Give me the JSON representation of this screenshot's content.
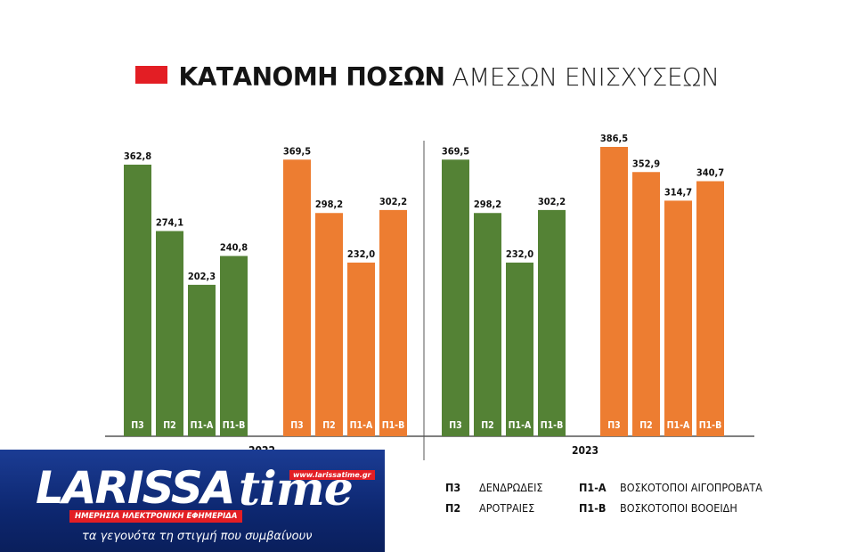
{
  "title": {
    "bold": "ΚΑΤΑΝΟΜΗ ΠΟΣΩΝ",
    "light": "ΑΜΕΣΩΝ ΕΝΙΣΧΥΣΕΩΝ"
  },
  "colors": {
    "green": "#548235",
    "orange": "#ed7d31",
    "accent": "#e31e24"
  },
  "chart_data": {
    "type": "bar",
    "categories": [
      "Π3",
      "Π2",
      "Π1-Α",
      "Π1-Β"
    ],
    "panels": [
      {
        "label": "2022",
        "series": [
          {
            "color": "#548235",
            "values": [
              362.8,
              274.1,
              202.3,
              240.8
            ],
            "labels": [
              "362,8",
              "274,1",
              "202,3",
              "240,8"
            ]
          },
          {
            "color": "#ed7d31",
            "values": [
              369.5,
              298.2,
              232.0,
              302.2
            ],
            "labels": [
              "369,5",
              "298,2",
              "232,0",
              "302,2"
            ]
          }
        ]
      },
      {
        "label": "2023",
        "series": [
          {
            "color": "#548235",
            "values": [
              369.5,
              298.2,
              232.0,
              302.2
            ],
            "labels": [
              "369,5",
              "298,2",
              "232,0",
              "302,2"
            ]
          },
          {
            "color": "#ed7d31",
            "values": [
              386.5,
              352.9,
              314.7,
              340.7
            ],
            "labels": [
              "386,5",
              "352,9",
              "314,7",
              "340,7"
            ]
          }
        ]
      }
    ],
    "ylim": [
      0,
      386.5
    ]
  },
  "legend": [
    {
      "code": "Π3",
      "text": "ΔΕΝΔΡΩΔΕΙΣ"
    },
    {
      "code": "Π2",
      "text": "ΑΡΟΤΡΑΙΕΣ"
    },
    {
      "code": "Π1-Α",
      "text": "ΒΟΣΚΟΤΟΠΟΙ ΑΙΓΟΠΡΟΒΑΤΑ"
    },
    {
      "code": "Π1-Β",
      "text": "ΒΟΣΚΟΤΟΠΟΙ ΒΟΟΕΙΔΗ"
    }
  ],
  "logo": {
    "name_part1": "LARISSA",
    "name_part2": "time",
    "url": "www.larissatime.gr",
    "banner": "ΗΜΕΡΗΣΙΑ ΗΛΕΚΤΡΟΝΙΚΗ ΕΦΗΜΕΡΙΔΑ",
    "tagline": "τα γεγονότα τη στιγμή που συμβαίνουν"
  }
}
